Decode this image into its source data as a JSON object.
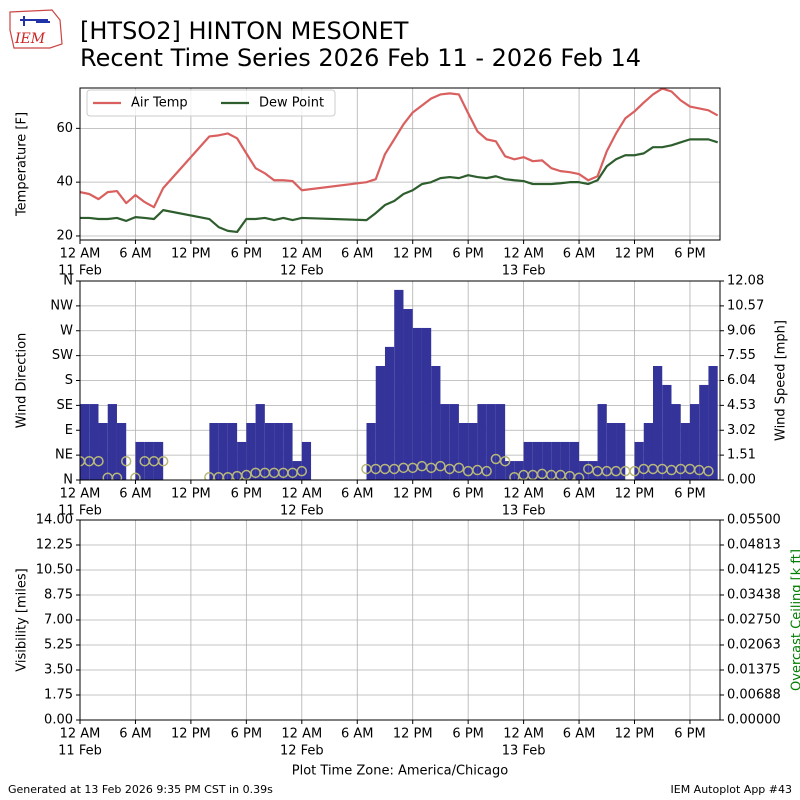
{
  "title": [
    "[HTSO2] HINTON MESONET",
    "Recent Time Series 2026 Feb 11 - 2026 Feb 14"
  ],
  "logo": "IEM",
  "footer": {
    "left": "Generated at 13 Feb 2026 9:35 PM CST in 0.39s",
    "right": "IEM Autoplot App #43"
  },
  "chart_data": [
    {
      "type": "line",
      "ylabel": "Temperature [F]",
      "grid": true,
      "legend": "upper left",
      "x": [
        0,
        1,
        2,
        3,
        4,
        5,
        6,
        7,
        8,
        9,
        14,
        15,
        16,
        17,
        18,
        19,
        20,
        21,
        22,
        23,
        24,
        31,
        32,
        33,
        34,
        35,
        36,
        37,
        38,
        39,
        40,
        41,
        42,
        43,
        44,
        45,
        46,
        47,
        48,
        49,
        50,
        51,
        52,
        53,
        54,
        55,
        56,
        57,
        58,
        59,
        60,
        61,
        62,
        63,
        64,
        65,
        66,
        67,
        68,
        69
      ],
      "xlim": [
        0,
        69.25
      ],
      "xticks": [
        {
          "value": 0,
          "label": "12 AM",
          "date": "11 Feb"
        },
        {
          "value": 6,
          "label": "6 AM"
        },
        {
          "value": 12,
          "label": "12 PM"
        },
        {
          "value": 18,
          "label": "6 PM"
        },
        {
          "value": 24,
          "label": "12 AM",
          "date": "12 Feb"
        },
        {
          "value": 30,
          "label": "6 AM"
        },
        {
          "value": 36,
          "label": "12 PM"
        },
        {
          "value": 42,
          "label": "6 PM"
        },
        {
          "value": 48,
          "label": "12 AM",
          "date": "13 Feb"
        },
        {
          "value": 54,
          "label": "6 AM"
        },
        {
          "value": 60,
          "label": "12 PM"
        },
        {
          "value": 66,
          "label": "6 PM"
        }
      ],
      "ylim": [
        18.5,
        75
      ],
      "yticks": [
        20,
        40,
        60
      ],
      "series": [
        {
          "name": "Air Temp",
          "color": "#d9605f",
          "values": [
            36.3,
            35.6,
            33.7,
            36.3,
            36.7,
            32.2,
            35.2,
            32.6,
            30.7,
            37.8,
            57.0,
            57.4,
            58.1,
            56.3,
            50.7,
            45.2,
            43.3,
            40.7,
            40.7,
            40.4,
            37.0,
            40.0,
            41.1,
            50.4,
            55.9,
            61.5,
            65.9,
            68.5,
            71.1,
            72.6,
            73.0,
            72.6,
            65.6,
            58.9,
            55.9,
            55.2,
            49.6,
            48.5,
            49.3,
            47.8,
            48.1,
            45.2,
            44.1,
            43.7,
            43.0,
            40.7,
            42.2,
            51.5,
            58.1,
            63.7,
            66.3,
            69.6,
            72.6,
            74.8,
            73.7,
            70.4,
            68.1,
            67.4,
            66.7,
            64.8
          ]
        },
        {
          "name": "Dew Point",
          "color": "#2e5e2e",
          "values": [
            26.7,
            26.7,
            26.3,
            26.3,
            26.7,
            25.6,
            27.0,
            26.7,
            26.3,
            29.6,
            26.3,
            23.3,
            21.9,
            21.5,
            26.3,
            26.3,
            26.7,
            25.9,
            26.7,
            25.9,
            26.7,
            25.9,
            28.5,
            31.5,
            33.0,
            35.6,
            37.0,
            39.3,
            40.0,
            41.5,
            41.9,
            41.5,
            42.6,
            41.9,
            41.5,
            42.2,
            41.1,
            40.7,
            40.4,
            39.3,
            39.3,
            39.3,
            39.6,
            40.0,
            40.0,
            39.3,
            40.7,
            45.9,
            48.5,
            50.0,
            50.0,
            50.7,
            53.0,
            53.0,
            53.7,
            54.8,
            55.9,
            55.9,
            55.9,
            54.8
          ]
        }
      ]
    },
    {
      "type": "bar",
      "ylabel": "Wind Direction",
      "y2label": "Wind Speed [mph]",
      "grid": true,
      "x": [
        0,
        1,
        2,
        3,
        4,
        5,
        6,
        7,
        8,
        9,
        10,
        11,
        12,
        13,
        14,
        15,
        16,
        17,
        18,
        19,
        20,
        21,
        22,
        23,
        24,
        25,
        26,
        27,
        28,
        29,
        30,
        31,
        32,
        33,
        34,
        35,
        36,
        37,
        38,
        39,
        40,
        41,
        42,
        43,
        44,
        45,
        46,
        47,
        48,
        49,
        50,
        51,
        52,
        53,
        54,
        55,
        56,
        57,
        58,
        59,
        60,
        61,
        62,
        63,
        64,
        65,
        66,
        67,
        68
      ],
      "xlim": [
        0,
        69.25
      ],
      "xticks": [
        {
          "value": 0,
          "label": "12 AM",
          "date": "11 Feb"
        },
        {
          "value": 6,
          "label": "6 AM"
        },
        {
          "value": 12,
          "label": "12 PM"
        },
        {
          "value": 18,
          "label": "6 PM"
        },
        {
          "value": 24,
          "label": "12 AM",
          "date": "12 Feb"
        },
        {
          "value": 30,
          "label": "6 AM"
        },
        {
          "value": 36,
          "label": "12 PM"
        },
        {
          "value": 42,
          "label": "6 PM"
        },
        {
          "value": 48,
          "label": "12 AM",
          "date": "13 Feb"
        },
        {
          "value": 54,
          "label": "6 AM"
        },
        {
          "value": 60,
          "label": "12 PM"
        },
        {
          "value": 66,
          "label": "6 PM"
        }
      ],
      "ylim": [
        0,
        360
      ],
      "yticks": [
        {
          "value": 0,
          "label": "N"
        },
        {
          "value": 45,
          "label": "NE"
        },
        {
          "value": 90,
          "label": "E"
        },
        {
          "value": 135,
          "label": "SE"
        },
        {
          "value": 180,
          "label": "S"
        },
        {
          "value": 225,
          "label": "SW"
        },
        {
          "value": 270,
          "label": "W"
        },
        {
          "value": 315,
          "label": "NW"
        },
        {
          "value": 360,
          "label": "N"
        }
      ],
      "y2lim": [
        0,
        12.08
      ],
      "y2ticks": [
        {
          "value": 0,
          "label": "0.00"
        },
        1.51,
        3.02,
        4.53,
        6.04,
        7.55,
        9.06,
        10.57,
        12.08
      ],
      "series": [
        {
          "type": "bar",
          "axis": "y2",
          "color": "#333399",
          "values": [
            4.61,
            4.61,
            3.46,
            4.61,
            3.46,
            null,
            2.31,
            2.31,
            2.31,
            null,
            null,
            null,
            null,
            null,
            3.46,
            3.46,
            3.46,
            2.31,
            3.46,
            4.61,
            3.46,
            3.46,
            3.46,
            1.15,
            2.31,
            null,
            null,
            null,
            null,
            null,
            null,
            3.46,
            6.92,
            8.08,
            11.54,
            10.38,
            9.23,
            9.23,
            6.92,
            4.61,
            4.61,
            3.46,
            3.46,
            4.61,
            4.61,
            4.61,
            1.15,
            1.15,
            2.31,
            2.31,
            2.31,
            2.31,
            2.31,
            2.31,
            1.15,
            1.15,
            4.61,
            3.46,
            3.46,
            null,
            2.31,
            3.46,
            6.92,
            5.77,
            4.61,
            3.46,
            4.61,
            5.77,
            6.92
          ]
        },
        {
          "type": "scatter",
          "color": "#b8b87a",
          "values": [
            34,
            34,
            34,
            4,
            4,
            34,
            4,
            34,
            34,
            34,
            null,
            null,
            null,
            null,
            5,
            5,
            5,
            7,
            9,
            13,
            13,
            13,
            13,
            13,
            16,
            null,
            null,
            null,
            null,
            null,
            null,
            20,
            20,
            20,
            20,
            22,
            22,
            25,
            22,
            25,
            20,
            22,
            16,
            18,
            16,
            38,
            34,
            5,
            9,
            9,
            11,
            9,
            9,
            7,
            4,
            20,
            16,
            16,
            16,
            16,
            16,
            20,
            20,
            20,
            18,
            20,
            20,
            18,
            16
          ]
        }
      ]
    },
    {
      "type": "line",
      "ylabel": "Visibility [miles]",
      "y2label": "Overcast Ceiling [k ft]",
      "y2label_color": "green",
      "xlabel": "Plot Time Zone: America/Chicago",
      "grid": true,
      "xlim": [
        0,
        69.25
      ],
      "xticks": [
        {
          "value": 0,
          "label": "12 AM",
          "date": "11 Feb"
        },
        {
          "value": 6,
          "label": "6 AM"
        },
        {
          "value": 12,
          "label": "12 PM"
        },
        {
          "value": 18,
          "label": "6 PM"
        },
        {
          "value": 24,
          "label": "12 AM",
          "date": "12 Feb"
        },
        {
          "value": 30,
          "label": "6 AM"
        },
        {
          "value": 36,
          "label": "12 PM"
        },
        {
          "value": 42,
          "label": "6 PM"
        },
        {
          "value": 48,
          "label": "12 AM",
          "date": "13 Feb"
        },
        {
          "value": 54,
          "label": "6 AM"
        },
        {
          "value": 60,
          "label": "12 PM"
        },
        {
          "value": 66,
          "label": "6 PM"
        }
      ],
      "ylim": [
        0,
        14
      ],
      "yticks": [
        {
          "value": 0,
          "label": "0.00"
        },
        1.75,
        {
          "value": 3.5,
          "label": "3.50"
        },
        5.25,
        {
          "value": 7,
          "label": "7.00"
        },
        8.75,
        {
          "value": 10.5,
          "label": "10.50"
        },
        12.25,
        {
          "value": 14,
          "label": "14.00"
        }
      ],
      "y2lim": [
        0,
        0.055
      ],
      "y2ticks": [
        {
          "value": 0,
          "label": "0.00000"
        },
        0.00688,
        0.01375,
        0.02063,
        {
          "value": 0.0275,
          "label": "0.02750"
        },
        0.03438,
        0.04125,
        0.04813,
        {
          "value": 0.055,
          "label": "0.05500"
        }
      ],
      "series": []
    }
  ]
}
